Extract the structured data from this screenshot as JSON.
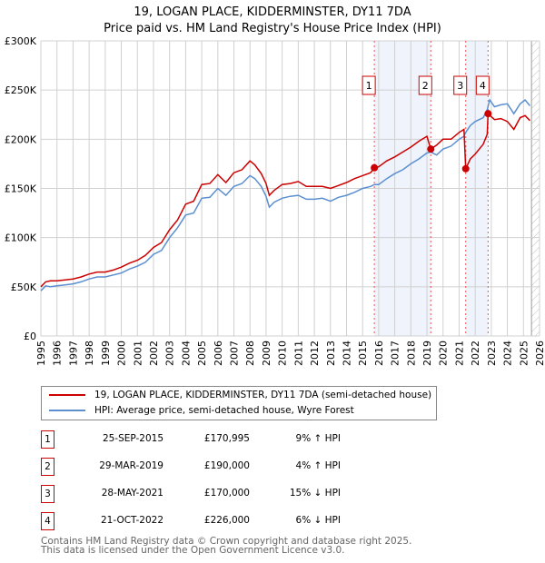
{
  "title": "19, LOGAN PLACE, KIDDERMINSTER, DY11 7DA",
  "subtitle": "Price paid vs. HM Land Registry's House Price Index (HPI)",
  "chart_data": {
    "type": "line",
    "xlim": [
      1995,
      2026
    ],
    "ylim": [
      0,
      300000
    ],
    "yticks": [
      {
        "v": 0,
        "l": "£0"
      },
      {
        "v": 50000,
        "l": "£50K"
      },
      {
        "v": 100000,
        "l": "£100K"
      },
      {
        "v": 150000,
        "l": "£150K"
      },
      {
        "v": 200000,
        "l": "£200K"
      },
      {
        "v": 250000,
        "l": "£250K"
      },
      {
        "v": 300000,
        "l": "£300K"
      }
    ],
    "xticks": [
      "1995",
      "1996",
      "1997",
      "1998",
      "1999",
      "2000",
      "2001",
      "2002",
      "2003",
      "2004",
      "2005",
      "2006",
      "2007",
      "2008",
      "2009",
      "2010",
      "2011",
      "2012",
      "2013",
      "2014",
      "2015",
      "2016",
      "2017",
      "2018",
      "2019",
      "2020",
      "2021",
      "2022",
      "2023",
      "2024",
      "2025",
      "2026"
    ],
    "shaded": [
      [
        2015.73,
        2019.24
      ],
      [
        2021.41,
        2022.8
      ]
    ],
    "hatched_from": 2025.5,
    "series": [
      {
        "name": "19, LOGAN PLACE, KIDDERMINSTER, DY11 7DA (semi-detached house)",
        "color": "#cc0000",
        "x": [
          1995,
          1995.3,
          1995.6,
          1996,
          1996.5,
          1997,
          1997.5,
          1998,
          1998.5,
          1999,
          1999.5,
          2000,
          2000.5,
          2001,
          2001.5,
          2002,
          2002.5,
          2003,
          2003.5,
          2004,
          2004.5,
          2005,
          2005.5,
          2006,
          2006.5,
          2007,
          2007.5,
          2008,
          2008.3,
          2008.7,
          2009,
          2009.2,
          2009.5,
          2010,
          2010.5,
          2011,
          2011.5,
          2012,
          2012.5,
          2013,
          2013.5,
          2014,
          2014.5,
          2015,
          2015.5,
          2015.73,
          2016,
          2016.5,
          2017,
          2017.5,
          2018,
          2018.5,
          2019,
          2019.24,
          2019.6,
          2020,
          2020.5,
          2021,
          2021.3,
          2021.41,
          2021.7,
          2022,
          2022.5,
          2022.75,
          2022.8,
          2023.2,
          2023.6,
          2024,
          2024.4,
          2024.8,
          2025.1,
          2025.4
        ],
        "y": [
          50000,
          55000,
          56000,
          56000,
          57000,
          58000,
          60000,
          63000,
          65000,
          65000,
          67000,
          70000,
          74000,
          77000,
          82000,
          90000,
          95000,
          108000,
          118000,
          134000,
          137000,
          154000,
          155000,
          164000,
          156000,
          166000,
          169000,
          178000,
          174000,
          165000,
          155000,
          143000,
          148000,
          154000,
          155000,
          157000,
          152000,
          152000,
          152000,
          150000,
          153000,
          156000,
          160000,
          163000,
          166000,
          170995,
          172000,
          178000,
          182000,
          187000,
          192000,
          198000,
          203000,
          190000,
          194000,
          200000,
          200000,
          207000,
          210000,
          170000,
          180000,
          185000,
          195000,
          205000,
          226000,
          220000,
          221000,
          218000,
          210000,
          222000,
          224000,
          219000
        ]
      },
      {
        "name": "HPI: Average price, semi-detached house, Wyre Forest",
        "color": "#5b8fd0",
        "x": [
          1995,
          1995.3,
          1995.6,
          1996,
          1996.5,
          1997,
          1997.5,
          1998,
          1998.5,
          1999,
          1999.5,
          2000,
          2000.5,
          2001,
          2001.5,
          2002,
          2002.5,
          2003,
          2003.5,
          2004,
          2004.5,
          2005,
          2005.5,
          2006,
          2006.5,
          2007,
          2007.5,
          2008,
          2008.3,
          2008.7,
          2009,
          2009.2,
          2009.5,
          2010,
          2010.5,
          2011,
          2011.5,
          2012,
          2012.5,
          2013,
          2013.5,
          2014,
          2014.5,
          2015,
          2015.5,
          2015.73,
          2016,
          2016.5,
          2017,
          2017.5,
          2018,
          2018.5,
          2019,
          2019.24,
          2019.6,
          2020,
          2020.5,
          2021,
          2021.3,
          2021.41,
          2021.7,
          2022,
          2022.5,
          2022.75,
          2022.9,
          2023.2,
          2023.6,
          2024,
          2024.4,
          2024.8,
          2025.1,
          2025.4
        ],
        "y": [
          46000,
          51000,
          50000,
          51000,
          52000,
          53000,
          55000,
          58000,
          60000,
          60000,
          62000,
          64000,
          68000,
          71000,
          75000,
          83000,
          87000,
          100000,
          110000,
          123000,
          125000,
          140000,
          141000,
          150000,
          143000,
          152000,
          155000,
          163000,
          160000,
          152000,
          142000,
          131000,
          136000,
          140000,
          142000,
          143000,
          139000,
          139000,
          140000,
          137000,
          141000,
          143000,
          146000,
          150000,
          152000,
          154000,
          154000,
          160000,
          165000,
          169000,
          175000,
          180000,
          186000,
          187000,
          184000,
          190000,
          193000,
          200000,
          203000,
          207000,
          214000,
          218000,
          222000,
          230000,
          240000,
          233000,
          235000,
          236000,
          226000,
          236000,
          240000,
          234000
        ]
      }
    ],
    "sales": [
      {
        "n": "1",
        "date": "25-SEP-2015",
        "price": "£170,995",
        "hpi": "9% ↑ HPI",
        "x": 2015.73,
        "y": 170995
      },
      {
        "n": "2",
        "date": "29-MAR-2019",
        "price": "£190,000",
        "hpi": "4% ↑ HPI",
        "x": 2019.24,
        "y": 190000
      },
      {
        "n": "3",
        "date": "28-MAY-2021",
        "price": "£170,000",
        "hpi": "15% ↓ HPI",
        "x": 2021.41,
        "y": 170000
      },
      {
        "n": "4",
        "date": "21-OCT-2022",
        "price": "£226,000",
        "hpi": "6% ↓ HPI",
        "x": 2022.8,
        "y": 226000
      }
    ]
  },
  "footer": [
    "Contains HM Land Registry data © Crown copyright and database right 2025.",
    "This data is licensed under the Open Government Licence v3.0."
  ]
}
